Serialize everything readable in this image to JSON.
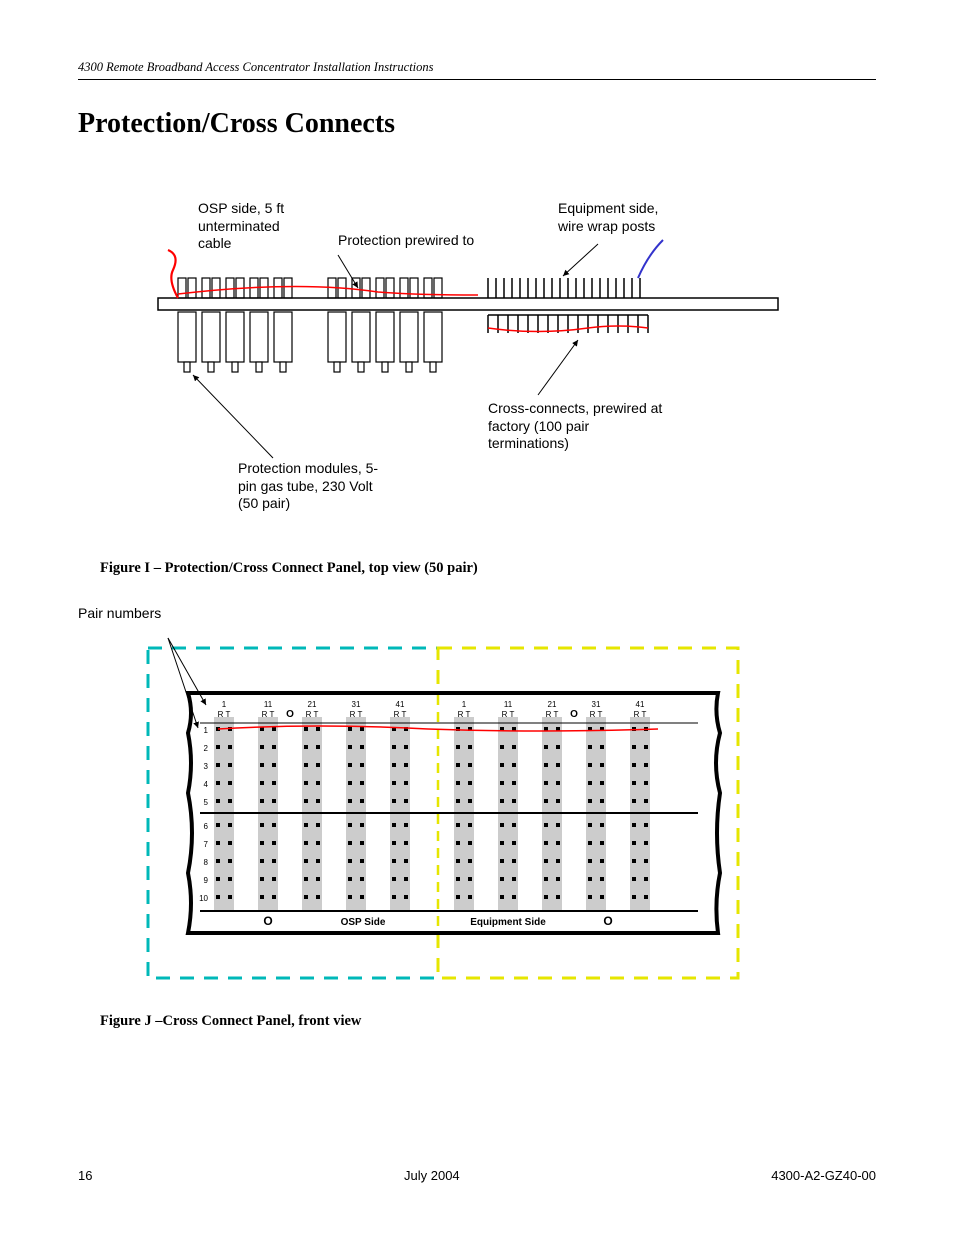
{
  "header": {
    "running_title": "4300 Remote Broadband Access Concentrator  Installation Instructions"
  },
  "section": {
    "title": "Protection/Cross Connects"
  },
  "figureI": {
    "caption": "Figure I – Protection/Cross Connect Panel, top view (50 pair)",
    "labels": {
      "osp_side": "OSP side, 5 ft\nunterminated\ncable",
      "protection_prewired": "Protection prewired to",
      "equipment_side": "Equipment side,\nwire wrap posts",
      "protection_modules": "Protection modules, 5-\npin gas tube, 230 Volt\n(50 pair)",
      "cross_connects": "Cross-connects, prewired at\nfactory (100 pair\nterminations)"
    },
    "style": {
      "horizontal_bar_color": "#ffffff",
      "horizontal_bar_stroke": "#000000",
      "tick_stroke": "#000000",
      "module_count_group1": 5,
      "module_count_group2": 5,
      "curl_color": "#ff0000",
      "equipment_lead_color": "#3333cc",
      "crossconnect_lead_color": "#ff0000",
      "fill": "#ffffff"
    }
  },
  "figureJ": {
    "caption": "Figure J –Cross Connect Panel, front view",
    "label_pair_numbers": "Pair numbers",
    "col_headers_numbers": [
      "1",
      "11",
      "21",
      "31",
      "41"
    ],
    "col_headers_rt": "R  T",
    "row_numbers": [
      "1",
      "2",
      "3",
      "4",
      "5",
      "6",
      "7",
      "8",
      "9",
      "10"
    ],
    "bottom_labels": {
      "left": "OSP Side",
      "right": "Equipment Side"
    },
    "style": {
      "panel_fill": "#ffffff",
      "panel_stroke": "#000000",
      "panel_stroke_width": 4,
      "stripe_fill": "#cccccc",
      "dot_fill": "#000000",
      "osp_dash_color": "#00b8b8",
      "equip_dash_color": "#e6e600",
      "red_wire_color": "#ff0000",
      "mid_sep_color": "#e6e600",
      "pair_arrow_color": "#000000",
      "label_font_size": 8,
      "bottom_label_font_size": 10
    }
  },
  "footer": {
    "page_number": "16",
    "date": "July 2004",
    "doc_number": "4300-A2-GZ40-00"
  }
}
